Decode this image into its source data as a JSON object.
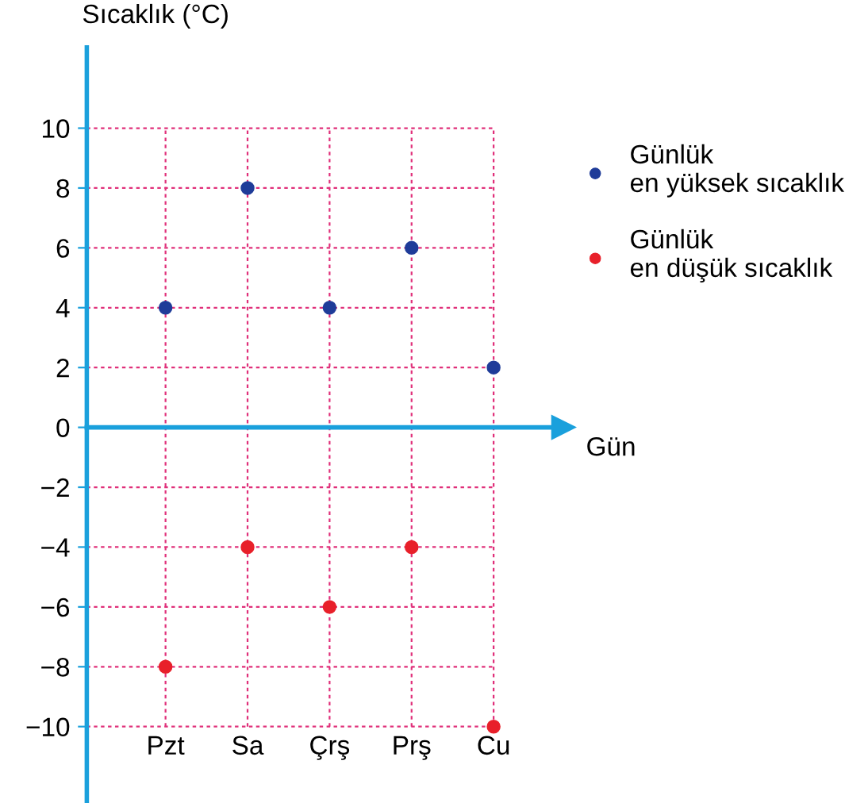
{
  "chart_data": {
    "type": "scatter",
    "xlabel": "Gün",
    "ylabel": "Sıcaklık (°C)",
    "categories": [
      "Pzt",
      "Sa",
      "Çrş",
      "Prş",
      "Cu"
    ],
    "series": [
      {
        "name": "Günlük\nen yüksek sıcaklık",
        "color": "#1f3c99",
        "values": [
          4,
          8,
          4,
          6,
          2
        ]
      },
      {
        "name": "Günlük\nen düşük sıcaklık",
        "color": "#e8202a",
        "values": [
          -8,
          -4,
          -6,
          -4,
          -10
        ]
      }
    ],
    "ylim": [
      -12.5,
      12.7
    ],
    "yticks": [
      {
        "value": -10,
        "label": "−10"
      },
      {
        "value": -8,
        "label": "−8"
      },
      {
        "value": -6,
        "label": "−6"
      },
      {
        "value": -4,
        "label": "−4"
      },
      {
        "value": -2,
        "label": "−2"
      },
      0,
      2,
      4,
      6,
      8,
      10
    ],
    "ref_lines": [
      {
        "axis": "y",
        "value": 0,
        "color": "#1aa0dc"
      }
    ],
    "grid": true,
    "legend": "top right",
    "marker": "circle"
  }
}
